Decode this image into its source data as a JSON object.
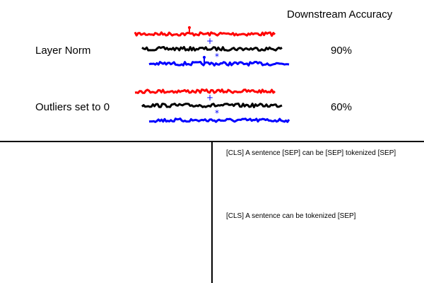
{
  "header": {
    "title": "Downstream Accuracy"
  },
  "rows": [
    {
      "label": "Layer Norm",
      "accuracy": "90%",
      "marker_plus": "+",
      "marker_star": "*"
    },
    {
      "label": "Outliers set to 0",
      "accuracy": "60%",
      "marker_plus": "+",
      "marker_star": "*"
    }
  ],
  "tokenizations": [
    "[CLS] A sentence [SEP] can be [SEP] tokenized [SEP]",
    "[CLS] A sentence can be tokenized [SEP]"
  ],
  "colors": {
    "series_top": "#ff0000",
    "series_middle": "#000000",
    "series_bottom": "#0000ff",
    "marker": "#0000ff"
  }
}
